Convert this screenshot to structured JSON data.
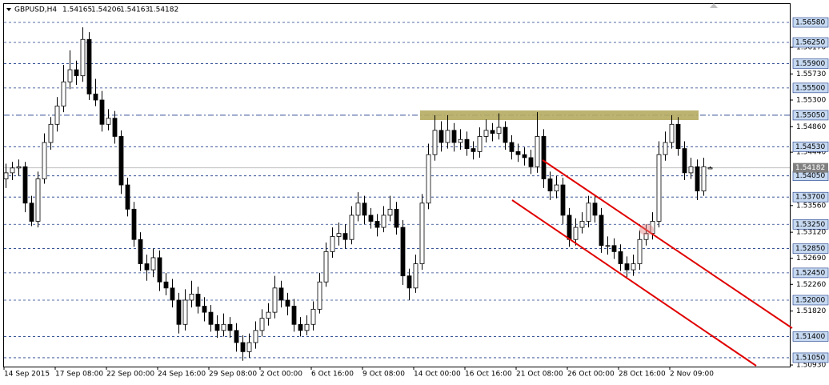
{
  "chart_data": {
    "type": "candlestick",
    "symbol": "GBPUSD,H4",
    "up_color": "#ffffff",
    "down_color": "#000000",
    "outline_color": "#000000",
    "level_color": "#1f3c88",
    "current_line_color": "#c0c0c0",
    "level_box_color": "#c6d9f1",
    "current_box_color": "#808080",
    "ylim": [
      1.50904,
      1.56884
    ],
    "x_labels": [
      "14 Sep 2015",
      "17 Sep 08:00",
      "22 Sep 00:00",
      "24 Sep 16:00",
      "29 Sep 08:00",
      "2 Oct 00:00",
      "6 Oct 16:00",
      "9 Oct 08:00",
      "14 Oct 00:00",
      "16 Oct 16:00",
      "21 Oct 08:00",
      "26 Oct 00:00",
      "28 Oct 16:00",
      "2 Nov 09:00"
    ],
    "yticks": [
      {
        "value": 1.5617,
        "label": "1.56170"
      },
      {
        "value": 1.5573,
        "label": "1.55730"
      },
      {
        "value": 1.553,
        "label": "1.55300"
      },
      {
        "value": 1.5486,
        "label": "1.54860"
      },
      {
        "value": 1.5444,
        "label": "1.54440"
      },
      {
        "value": 1.5356,
        "label": "1.53560"
      },
      {
        "value": 1.5312,
        "label": "1.53120"
      },
      {
        "value": 1.5269,
        "label": "1.52690"
      },
      {
        "value": 1.5226,
        "label": "1.52260"
      },
      {
        "value": 1.5182,
        "label": "1.51820"
      },
      {
        "value": 1.5093,
        "label": "1.50930"
      }
    ],
    "levels": [
      {
        "value": 1.5658,
        "label": "1.56580"
      },
      {
        "value": 1.5625,
        "label": "1.56250"
      },
      {
        "value": 1.559,
        "label": "1.55900"
      },
      {
        "value": 1.555,
        "label": "1.55500"
      },
      {
        "value": 1.5505,
        "label": "1.55050"
      },
      {
        "value": 1.5453,
        "label": "1.54530"
      },
      {
        "value": 1.5405,
        "label": "1.54050"
      },
      {
        "value": 1.537,
        "label": "1.53700"
      },
      {
        "value": 1.5325,
        "label": "1.53250"
      },
      {
        "value": 1.5285,
        "label": "1.52850"
      },
      {
        "value": 1.5245,
        "label": "1.52450"
      },
      {
        "value": 1.52,
        "label": "1.52000"
      },
      {
        "value": 1.514,
        "label": "1.51400"
      },
      {
        "value": 1.5105,
        "label": "1.51050"
      }
    ],
    "level_styles": [
      "dash",
      "dash",
      "dash",
      "dash",
      "dashdot",
      "dash",
      "dash",
      "dash",
      "dash",
      "dash",
      "dash",
      "dash",
      "dash",
      "dash"
    ],
    "ohlc": [
      [
        1.54,
        1.5425,
        1.5385,
        1.541
      ],
      [
        1.541,
        1.5428,
        1.5398,
        1.5418
      ],
      [
        1.5418,
        1.5432,
        1.5405,
        1.542
      ],
      [
        1.542,
        1.5428,
        1.5345,
        1.536
      ],
      [
        1.536,
        1.5372,
        1.5322,
        1.533
      ],
      [
        1.533,
        1.5412,
        1.532,
        1.54
      ],
      [
        1.54,
        1.5475,
        1.5392,
        1.546
      ],
      [
        1.546,
        1.5502,
        1.5448,
        1.549
      ],
      [
        1.549,
        1.5535,
        1.5478,
        1.552
      ],
      [
        1.552,
        1.5588,
        1.551,
        1.556
      ],
      [
        1.556,
        1.5612,
        1.5548,
        1.558
      ],
      [
        1.558,
        1.5595,
        1.5555,
        1.557
      ],
      [
        1.557,
        1.565,
        1.556,
        1.563
      ],
      [
        1.563,
        1.5642,
        1.553,
        1.554
      ],
      [
        1.554,
        1.5565,
        1.552,
        1.553
      ],
      [
        1.553,
        1.5545,
        1.5478,
        1.549
      ],
      [
        1.549,
        1.5515,
        1.548,
        1.55
      ],
      [
        1.55,
        1.5512,
        1.5458,
        1.547
      ],
      [
        1.547,
        1.548,
        1.5375,
        1.539
      ],
      [
        1.539,
        1.5402,
        1.5338,
        1.535
      ],
      [
        1.535,
        1.5362,
        1.5288,
        1.53
      ],
      [
        1.53,
        1.5312,
        1.5248,
        1.526
      ],
      [
        1.526,
        1.5275,
        1.5232,
        1.525
      ],
      [
        1.525,
        1.5285,
        1.5238,
        1.527
      ],
      [
        1.527,
        1.5282,
        1.5215,
        1.523
      ],
      [
        1.523,
        1.5245,
        1.5208,
        1.522
      ],
      [
        1.522,
        1.5235,
        1.5188,
        1.52
      ],
      [
        1.52,
        1.5212,
        1.5145,
        1.516
      ],
      [
        1.516,
        1.5218,
        1.515,
        1.52
      ],
      [
        1.52,
        1.5232,
        1.5188,
        1.521
      ],
      [
        1.521,
        1.5222,
        1.5178,
        1.519
      ],
      [
        1.519,
        1.5205,
        1.5165,
        1.518
      ],
      [
        1.518,
        1.5192,
        1.5148,
        1.516
      ],
      [
        1.516,
        1.5175,
        1.5138,
        1.515
      ],
      [
        1.515,
        1.5178,
        1.514,
        1.516
      ],
      [
        1.516,
        1.5172,
        1.5138,
        1.515
      ],
      [
        1.515,
        1.5162,
        1.5115,
        1.513
      ],
      [
        1.513,
        1.5142,
        1.51,
        1.5115
      ],
      [
        1.5115,
        1.5145,
        1.5105,
        1.513
      ],
      [
        1.513,
        1.5165,
        1.512,
        1.515
      ],
      [
        1.515,
        1.5185,
        1.514,
        1.517
      ],
      [
        1.517,
        1.5195,
        1.5158,
        1.518
      ],
      [
        1.518,
        1.524,
        1.517,
        1.522
      ],
      [
        1.522,
        1.5232,
        1.5188,
        1.52
      ],
      [
        1.52,
        1.5212,
        1.5175,
        1.519
      ],
      [
        1.519,
        1.5202,
        1.5148,
        1.516
      ],
      [
        1.516,
        1.5172,
        1.514,
        1.515
      ],
      [
        1.515,
        1.5175,
        1.5142,
        1.516
      ],
      [
        1.516,
        1.5198,
        1.515,
        1.5185
      ],
      [
        1.5185,
        1.5245,
        1.5178,
        1.523
      ],
      [
        1.523,
        1.5295,
        1.5222,
        1.528
      ],
      [
        1.528,
        1.532,
        1.527,
        1.5305
      ],
      [
        1.5305,
        1.5328,
        1.529,
        1.531
      ],
      [
        1.531,
        1.5325,
        1.5285,
        1.53
      ],
      [
        1.53,
        1.5355,
        1.5292,
        1.534
      ],
      [
        1.534,
        1.5378,
        1.533,
        1.536
      ],
      [
        1.536,
        1.5372,
        1.5325,
        1.534
      ],
      [
        1.534,
        1.5352,
        1.5318,
        1.533
      ],
      [
        1.533,
        1.5342,
        1.5305,
        1.532
      ],
      [
        1.532,
        1.5355,
        1.5312,
        1.534
      ],
      [
        1.534,
        1.5372,
        1.533,
        1.535
      ],
      [
        1.535,
        1.5362,
        1.5308,
        1.532
      ],
      [
        1.532,
        1.5332,
        1.5225,
        1.524
      ],
      [
        1.524,
        1.5252,
        1.52,
        1.522
      ],
      [
        1.522,
        1.5275,
        1.5212,
        1.526
      ],
      [
        1.526,
        1.5375,
        1.525,
        1.536
      ],
      [
        1.536,
        1.5458,
        1.535,
        1.544
      ],
      [
        1.544,
        1.5505,
        1.543,
        1.548
      ],
      [
        1.548,
        1.5495,
        1.5445,
        1.546
      ],
      [
        1.546,
        1.5505,
        1.545,
        1.548
      ],
      [
        1.548,
        1.5492,
        1.5445,
        1.546
      ],
      [
        1.546,
        1.5482,
        1.5448,
        1.5465
      ],
      [
        1.5465,
        1.5478,
        1.5438,
        1.545
      ],
      [
        1.545,
        1.5462,
        1.5432,
        1.5445
      ],
      [
        1.5445,
        1.5485,
        1.5435,
        1.547
      ],
      [
        1.547,
        1.5498,
        1.546,
        1.548
      ],
      [
        1.548,
        1.5492,
        1.5462,
        1.5475
      ],
      [
        1.5475,
        1.5508,
        1.5465,
        1.5485
      ],
      [
        1.5485,
        1.5495,
        1.5448,
        1.546
      ],
      [
        1.546,
        1.5472,
        1.5432,
        1.5445
      ],
      [
        1.5445,
        1.5458,
        1.5428,
        1.544
      ],
      [
        1.544,
        1.5452,
        1.5422,
        1.5435
      ],
      [
        1.5435,
        1.5448,
        1.5408,
        1.542
      ],
      [
        1.542,
        1.551,
        1.541,
        1.547
      ],
      [
        1.547,
        1.5482,
        1.5385,
        1.54
      ],
      [
        1.54,
        1.5412,
        1.5365,
        1.538
      ],
      [
        1.538,
        1.5405,
        1.5368,
        1.539
      ],
      [
        1.539,
        1.5402,
        1.5325,
        1.534
      ],
      [
        1.534,
        1.5352,
        1.5288,
        1.53
      ],
      [
        1.53,
        1.5335,
        1.529,
        1.532
      ],
      [
        1.532,
        1.5345,
        1.531,
        1.533
      ],
      [
        1.533,
        1.5372,
        1.532,
        1.536
      ],
      [
        1.536,
        1.5372,
        1.5328,
        1.534
      ],
      [
        1.534,
        1.5352,
        1.5278,
        1.529
      ],
      [
        1.529,
        1.5305,
        1.5275,
        1.529
      ],
      [
        1.529,
        1.5302,
        1.5268,
        1.528
      ],
      [
        1.528,
        1.5292,
        1.5248,
        1.526
      ],
      [
        1.526,
        1.5272,
        1.5238,
        1.525
      ],
      [
        1.525,
        1.5275,
        1.524,
        1.526
      ],
      [
        1.526,
        1.5315,
        1.525,
        1.53
      ],
      [
        1.53,
        1.5325,
        1.529,
        1.531
      ],
      [
        1.531,
        1.5345,
        1.53,
        1.533
      ],
      [
        1.533,
        1.5462,
        1.532,
        1.544
      ],
      [
        1.544,
        1.5478,
        1.543,
        1.546
      ],
      [
        1.546,
        1.5505,
        1.545,
        1.549
      ],
      [
        1.549,
        1.5502,
        1.5438,
        1.545
      ],
      [
        1.545,
        1.5462,
        1.5398,
        1.541
      ],
      [
        1.541,
        1.5435,
        1.54,
        1.542
      ],
      [
        1.542,
        1.5432,
        1.5365,
        1.538
      ],
      [
        1.538,
        1.5435,
        1.5372,
        1.542
      ],
      [
        1.54165,
        1.54206,
        1.54163,
        1.54182
      ]
    ]
  }
}
